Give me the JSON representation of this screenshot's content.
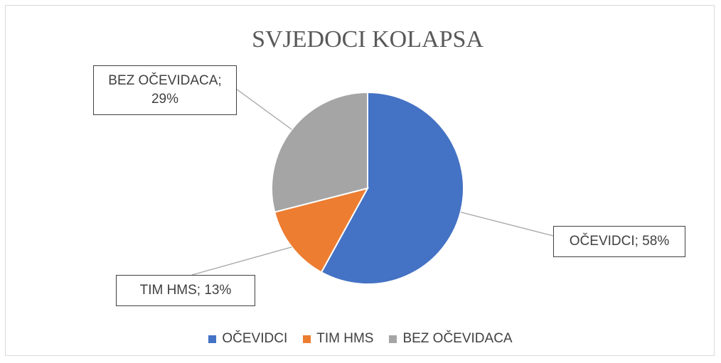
{
  "chart_data": {
    "type": "pie",
    "title": "SVJEDOCI KOLAPSA",
    "categories": [
      "OČEVIDCI",
      "TIM HMS",
      "BEZ OČEVIDACA"
    ],
    "values": [
      58,
      13,
      29
    ],
    "value_labels": [
      "OČEVIDCI; 58%",
      "TIM HMS; 13%",
      "BEZ OČEVIDACA; 29%"
    ],
    "colors": [
      "#4472c4",
      "#ed7d31",
      "#a5a5a5"
    ],
    "legend": "bottom"
  }
}
